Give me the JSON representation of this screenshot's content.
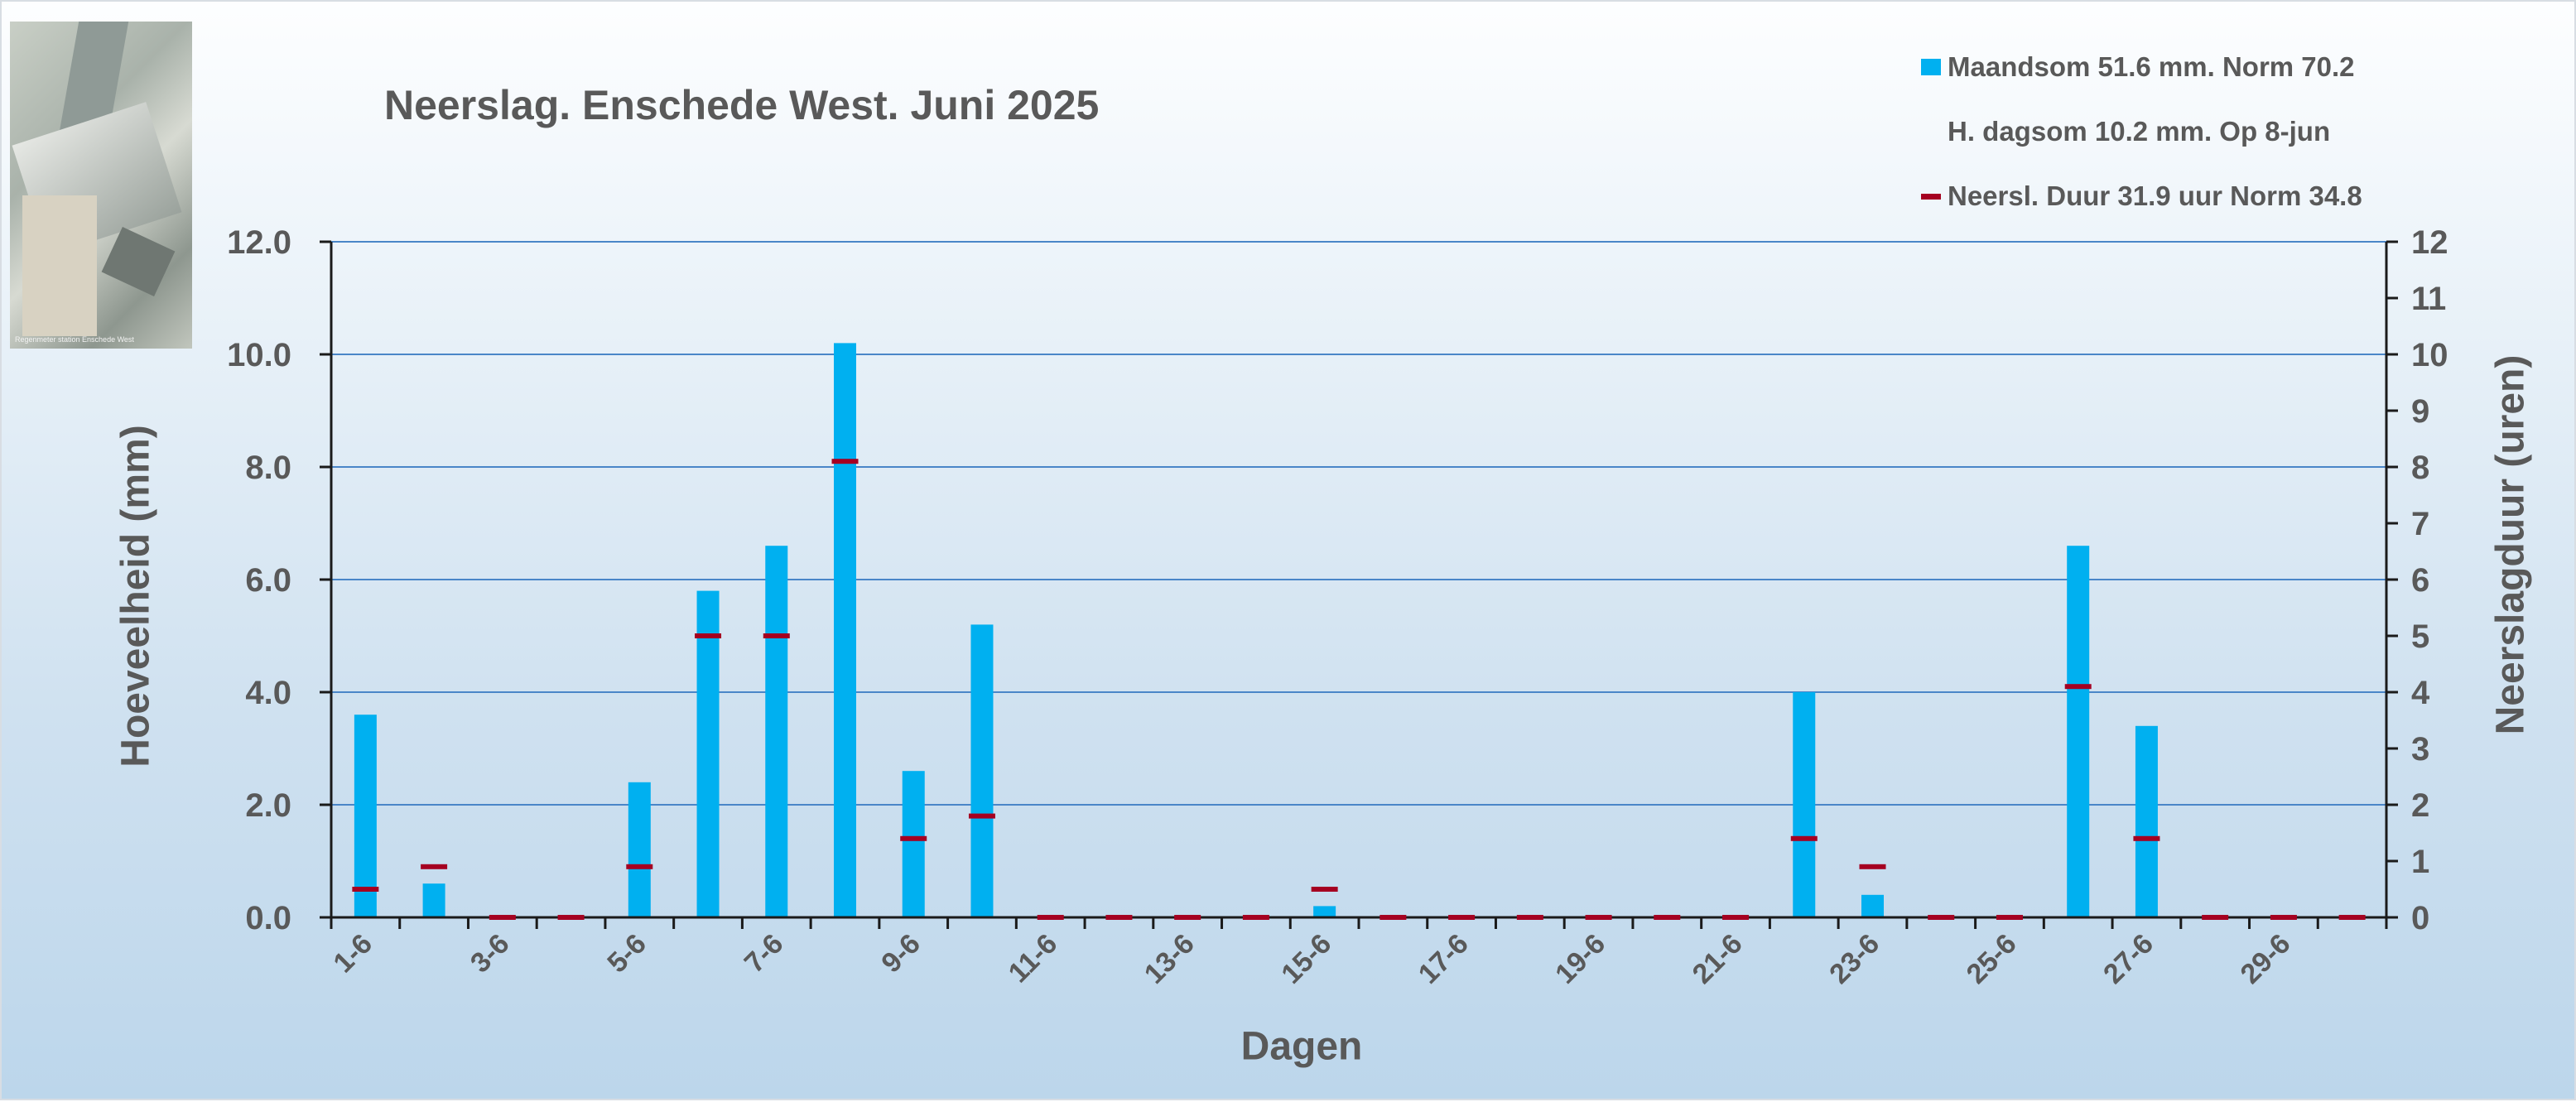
{
  "photo": {
    "caption": "Regenmeter station Enschede West"
  },
  "chart_data": {
    "type": "bar",
    "title": "Neerslag. Enschede West. Juni 2025",
    "xlabel": "Dagen",
    "ylabel": "Hoeveelheid (mm)",
    "y2label": "Neerslagduur  (uren)",
    "ylim": [
      0,
      12
    ],
    "y2lim": [
      0,
      12
    ],
    "yticks": [
      "0.0",
      "2.0",
      "4.0",
      "6.0",
      "8.0",
      "10.0",
      "12.0"
    ],
    "y2ticks": [
      "0",
      "1",
      "2",
      "3",
      "4",
      "5",
      "6",
      "7",
      "8",
      "9",
      "10",
      "11",
      "12"
    ],
    "xtick_labels": [
      "1-6",
      "3-6",
      "5-6",
      "7-6",
      "9-6",
      "11-6",
      "13-6",
      "15-6",
      "17-6",
      "19-6",
      "21-6",
      "23-6",
      "25-6",
      "27-6",
      "29-6"
    ],
    "grid": true,
    "legend_position": "top-right",
    "categories": [
      "1-6",
      "2-6",
      "3-6",
      "4-6",
      "5-6",
      "6-6",
      "7-6",
      "8-6",
      "9-6",
      "10-6",
      "11-6",
      "12-6",
      "13-6",
      "14-6",
      "15-6",
      "16-6",
      "17-6",
      "18-6",
      "19-6",
      "20-6",
      "21-6",
      "22-6",
      "23-6",
      "24-6",
      "25-6",
      "26-6",
      "27-6",
      "28-6",
      "29-6",
      "30-6"
    ],
    "series": [
      {
        "name": "Maandsom 51.6 mm. Norm 70.2",
        "axis": "left",
        "color": "#00b0f0",
        "values": [
          3.6,
          0.6,
          0,
          0,
          2.4,
          5.8,
          6.6,
          10.2,
          2.6,
          5.2,
          0,
          0,
          0,
          0,
          0.2,
          0,
          0,
          0,
          0,
          0,
          0,
          4.0,
          0.4,
          0,
          0,
          6.6,
          3.4,
          0,
          0,
          0
        ]
      },
      {
        "name": "Neersl. Duur 31.9 uur Norm 34.8",
        "axis": "right",
        "color": "#a50021",
        "values": [
          0.5,
          0.9,
          0,
          0,
          0.9,
          5.0,
          5.0,
          8.1,
          1.4,
          1.8,
          0,
          0,
          0,
          0,
          0.5,
          0,
          0,
          0,
          0,
          0,
          0,
          1.4,
          0.9,
          0,
          0,
          4.1,
          1.4,
          0,
          0,
          0
        ]
      }
    ],
    "legend": [
      {
        "label": "Maandsom 51.6 mm. Norm 70.2",
        "marker": "box"
      },
      {
        "label": "H. dagsom 10.2 mm.  Op  8-jun",
        "marker": "none"
      },
      {
        "label": "Neersl. Duur 31.9 uur Norm 34.8",
        "marker": "dash"
      }
    ]
  }
}
